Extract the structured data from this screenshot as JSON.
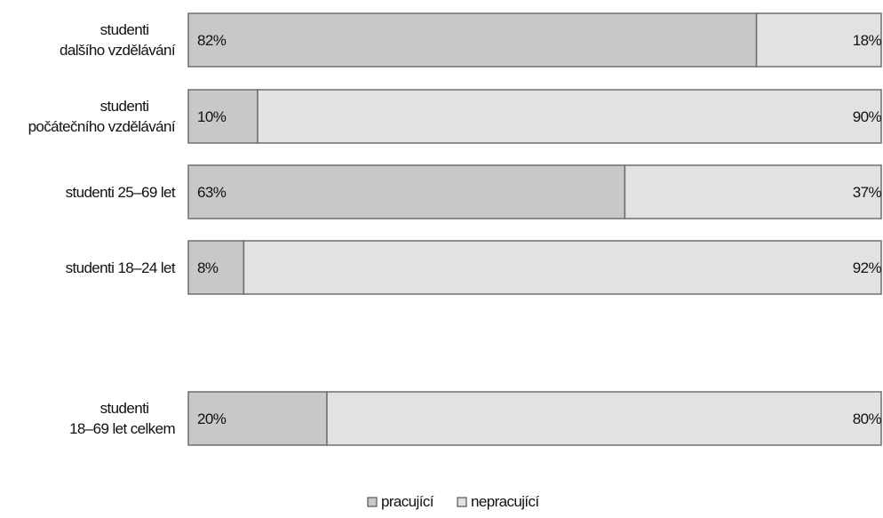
{
  "chart_data": {
    "type": "bar",
    "orientation": "horizontal",
    "stacked": true,
    "categories": [
      [
        "studenti",
        "dalšího vzdělávání"
      ],
      [
        "studenti",
        "počátečního vzdělávání"
      ],
      [
        "studenti 25–69 let"
      ],
      [
        "studenti 18–24 let"
      ],
      [
        "studenti",
        "18–69 let celkem"
      ]
    ],
    "series": [
      {
        "name": "pracující",
        "values": [
          82,
          10,
          63,
          8,
          20
        ],
        "labels": [
          "82%",
          "10%",
          "63%",
          "8%",
          "20%"
        ],
        "color": "#c8c8c8"
      },
      {
        "name": "nepracující",
        "values": [
          18,
          90,
          37,
          92,
          80
        ],
        "labels": [
          "18%",
          "90%",
          "37%",
          "92%",
          "80%"
        ],
        "color": "#e2e2e2"
      }
    ],
    "xlim": [
      0,
      100
    ],
    "grid": false,
    "legend": "bottom-center"
  }
}
